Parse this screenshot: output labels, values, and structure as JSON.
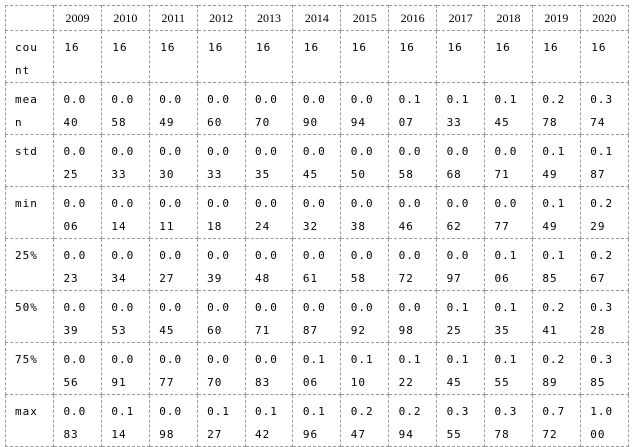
{
  "table": {
    "columns": [
      "2009",
      "2010",
      "2011",
      "2012",
      "2013",
      "2014",
      "2015",
      "2016",
      "2017",
      "2018",
      "2019",
      "2020"
    ],
    "rows": [
      {
        "label": "count",
        "values": [
          "16",
          "16",
          "16",
          "16",
          "16",
          "16",
          "16",
          "16",
          "16",
          "16",
          "16",
          "16"
        ]
      },
      {
        "label": "mean",
        "values": [
          "0.040",
          "0.058",
          "0.049",
          "0.060",
          "0.070",
          "0.090",
          "0.094",
          "0.107",
          "0.133",
          "0.145",
          "0.278",
          "0.374"
        ]
      },
      {
        "label": "std",
        "values": [
          "0.025",
          "0.033",
          "0.030",
          "0.033",
          "0.035",
          "0.045",
          "0.050",
          "0.058",
          "0.068",
          "0.071",
          "0.149",
          "0.187"
        ]
      },
      {
        "label": "min",
        "values": [
          "0.006",
          "0.014",
          "0.011",
          "0.018",
          "0.024",
          "0.032",
          "0.038",
          "0.046",
          "0.062",
          "0.077",
          "0.149",
          "0.229"
        ]
      },
      {
        "label": "25%",
        "values": [
          "0.023",
          "0.034",
          "0.027",
          "0.039",
          "0.048",
          "0.061",
          "0.058",
          "0.072",
          "0.097",
          "0.106",
          "0.185",
          "0.267"
        ]
      },
      {
        "label": "50%",
        "values": [
          "0.039",
          "0.053",
          "0.045",
          "0.060",
          "0.071",
          "0.087",
          "0.092",
          "0.098",
          "0.125",
          "0.135",
          "0.241",
          "0.328"
        ]
      },
      {
        "label": "75%",
        "values": [
          "0.056",
          "0.091",
          "0.077",
          "0.070",
          "0.083",
          "0.106",
          "0.110",
          "0.122",
          "0.145",
          "0.155",
          "0.289",
          "0.385"
        ]
      },
      {
        "label": "max",
        "values": [
          "0.083",
          "0.114",
          "0.098",
          "0.127",
          "0.142",
          "0.196",
          "0.247",
          "0.294",
          "0.355",
          "0.378",
          "0.772",
          "1.000"
        ]
      }
    ]
  }
}
